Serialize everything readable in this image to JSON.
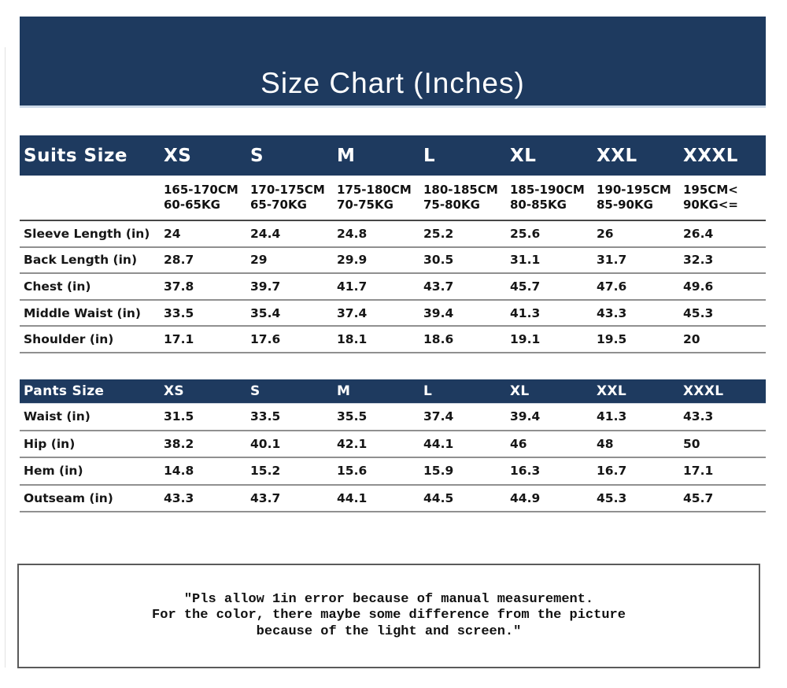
{
  "banner": {
    "title": "Size Chart (Inches)",
    "bg_color": "#1e3a5f",
    "text_color": "#ffffff"
  },
  "suits": {
    "header_label": "Suits Size",
    "sizes": [
      "XS",
      "S",
      "M",
      "L",
      "XL",
      "XXL",
      "XXXL"
    ],
    "ranges": [
      {
        "cm": "165-170CM",
        "kg": "60-65KG"
      },
      {
        "cm": "170-175CM",
        "kg": "65-70KG"
      },
      {
        "cm": "175-180CM",
        "kg": "70-75KG"
      },
      {
        "cm": "180-185CM",
        "kg": "75-80KG"
      },
      {
        "cm": "185-190CM",
        "kg": "80-85KG"
      },
      {
        "cm": "190-195CM",
        "kg": "85-90KG"
      },
      {
        "cm": "195CM<",
        "kg": "90KG<="
      }
    ],
    "rows": [
      {
        "label": "Sleeve Length (in)",
        "values": [
          "24",
          "24.4",
          "24.8",
          "25.2",
          "25.6",
          "26",
          "26.4"
        ]
      },
      {
        "label": "Back Length (in)",
        "values": [
          "28.7",
          "29",
          "29.9",
          "30.5",
          "31.1",
          "31.7",
          "32.3"
        ]
      },
      {
        "label": "Chest (in)",
        "values": [
          "37.8",
          "39.7",
          "41.7",
          "43.7",
          "45.7",
          "47.6",
          "49.6"
        ]
      },
      {
        "label": "Middle Waist (in)",
        "values": [
          "33.5",
          "35.4",
          "37.4",
          "39.4",
          "41.3",
          "43.3",
          "45.3"
        ]
      },
      {
        "label": "Shoulder (in)",
        "values": [
          "17.1",
          "17.6",
          "18.1",
          "18.6",
          "19.1",
          "19.5",
          "20"
        ]
      }
    ]
  },
  "pants": {
    "header_label": "Pants Size",
    "sizes": [
      "XS",
      "S",
      "M",
      "L",
      "XL",
      "XXL",
      "XXXL"
    ],
    "rows": [
      {
        "label": "Waist (in)",
        "values": [
          "31.5",
          "33.5",
          "35.5",
          "37.4",
          "39.4",
          "41.3",
          "43.3"
        ]
      },
      {
        "label": "Hip (in)",
        "values": [
          "38.2",
          "40.1",
          "42.1",
          "44.1",
          "46",
          "48",
          "50"
        ]
      },
      {
        "label": "Hem (in)",
        "values": [
          "14.8",
          "15.2",
          "15.6",
          "15.9",
          "16.3",
          "16.7",
          "17.1"
        ]
      },
      {
        "label": "Outseam (in)",
        "values": [
          "43.3",
          "43.7",
          "44.1",
          "44.5",
          "44.9",
          "45.3",
          "45.7"
        ]
      }
    ]
  },
  "note": {
    "lines": [
      "″Pls allow 1in error because of manual measurement.",
      "For the color, there maybe some difference from the picture",
      "because of the light and screen.″"
    ]
  },
  "colors": {
    "navy": "#1e3a5f",
    "row_line": "#909090",
    "dark_line": "#474747",
    "note_border": "#5a5a5a"
  }
}
